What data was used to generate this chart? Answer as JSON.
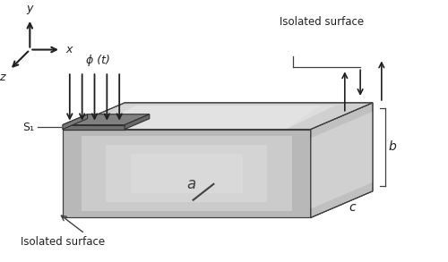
{
  "bg_color": "#ffffff",
  "front_face_color": "#c0c0c0",
  "front_face_light": "#e8e8e8",
  "top_face_color": "#d5d5d5",
  "top_face_light": "#f0f0f0",
  "right_face_color": "#b0b0b0",
  "right_face_light": "#d8d8d8",
  "bottom_face_color": "#a8a8a8",
  "heated_top_color": "#909090",
  "heated_front_color": "#808080",
  "heated_right_color": "#787878",
  "edge_color": "#404040",
  "arrow_color": "#202020",
  "text_color": "#202020",
  "label_a": "a",
  "label_b": "b",
  "label_c": "c",
  "label_s1": "S₁",
  "label_phi": "ϕ (t)",
  "label_iso_top": "Isolated surface",
  "label_iso_bottom": "Isolated surface"
}
